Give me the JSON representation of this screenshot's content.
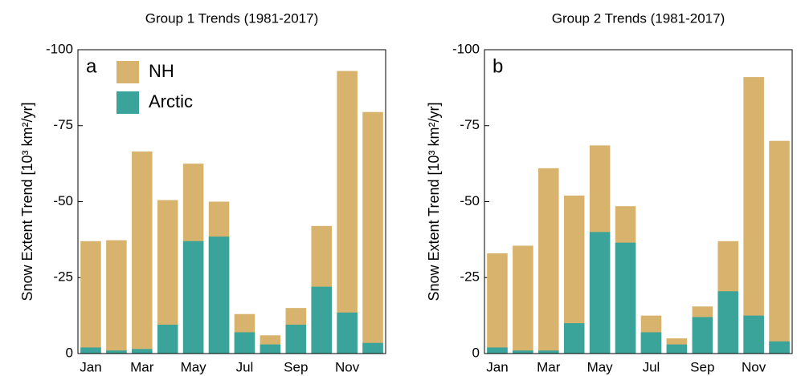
{
  "chart_data": [
    {
      "type": "bar",
      "title": "Group 1 Trends (1981-2017)",
      "ylabel": "Snow Extent Trend  [10³ km²/yr]",
      "annotation": "a",
      "categories": [
        "Jan",
        null,
        "Mar",
        null,
        "May",
        null,
        "Jul",
        null,
        "Sep",
        null,
        "Nov",
        null
      ],
      "series": [
        {
          "name": "NH",
          "color": "#d8b36e",
          "values": [
            -37,
            -37.3,
            -66.5,
            -50.5,
            -62.5,
            -50,
            -13,
            -6,
            -15,
            -42,
            -93,
            -79.5
          ]
        },
        {
          "name": "Arctic",
          "color": "#3aa39a",
          "values": [
            -2,
            -1,
            -1.5,
            -9.5,
            -37,
            -38.5,
            -7,
            -3,
            -9.5,
            -22,
            -13.5,
            -3.5
          ]
        }
      ],
      "ylim": [
        0,
        -100
      ],
      "yticks": [
        -100,
        -75,
        -50,
        -25,
        0
      ],
      "legend": "upper left"
    },
    {
      "type": "bar",
      "title": "Group 2 Trends (1981-2017)",
      "ylabel": "Snow Extent Trend  [10³ km²/yr]",
      "annotation": "b",
      "categories": [
        "Jan",
        null,
        "Mar",
        null,
        "May",
        null,
        "Jul",
        null,
        "Sep",
        null,
        "Nov",
        null
      ],
      "series": [
        {
          "color": "#d8b36e",
          "values": [
            -33,
            -35.5,
            -61,
            -52,
            -68.5,
            -48.5,
            -12.5,
            -5,
            -15.5,
            -37,
            -91,
            -70
          ]
        },
        {
          "color": "#3aa39a",
          "values": [
            -2,
            -1,
            -1,
            -10,
            -40,
            -36.5,
            -7,
            -3,
            -12,
            -20.5,
            -12.5,
            -4
          ]
        }
      ],
      "ylim": [
        0,
        -100
      ],
      "yticks": [
        -100,
        -75,
        -50,
        -25,
        0
      ]
    }
  ]
}
